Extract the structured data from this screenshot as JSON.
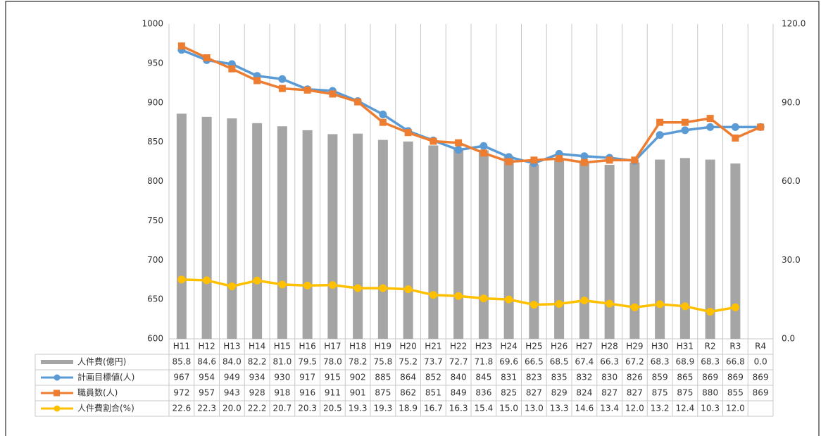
{
  "chart_data": {
    "type": "combo",
    "categories": [
      "H11",
      "H12",
      "H13",
      "H14",
      "H15",
      "H16",
      "H17",
      "H18",
      "H19",
      "H20",
      "H21",
      "H22",
      "H23",
      "H24",
      "H25",
      "H26",
      "H27",
      "H28",
      "H29",
      "H30",
      "H31",
      "R2",
      "R3",
      "R4"
    ],
    "ylim": [
      600,
      1000
    ],
    "yticks": [
      600,
      650,
      700,
      750,
      800,
      850,
      900,
      950,
      1000
    ],
    "y2lim": [
      0,
      120
    ],
    "y2ticks": [
      {
        "value": 0,
        "label": "0.0"
      },
      {
        "value": 30,
        "label": "30.0"
      },
      {
        "value": 60,
        "label": "60.0"
      },
      {
        "value": 90,
        "label": "90.0"
      },
      {
        "value": 120,
        "label": "120.0"
      }
    ],
    "grid": "x",
    "series": [
      {
        "name": "人件費(億円)",
        "type": "bar",
        "axis": "y2",
        "color": "#a5a5a5",
        "values": [
          85.8,
          84.6,
          84.0,
          82.2,
          81.0,
          79.5,
          78.0,
          78.2,
          75.8,
          75.2,
          73.7,
          72.7,
          71.8,
          69.6,
          66.5,
          68.5,
          67.4,
          66.3,
          67.2,
          68.3,
          68.9,
          68.3,
          66.8,
          0.0
        ],
        "value_labels": [
          "85.8",
          "84.6",
          "84.0",
          "82.2",
          "81.0",
          "79.5",
          "78.0",
          "78.2",
          "75.8",
          "75.2",
          "73.7",
          "72.7",
          "71.8",
          "69.6",
          "66.5",
          "68.5",
          "67.4",
          "66.3",
          "67.2",
          "68.3",
          "68.9",
          "68.3",
          "66.8",
          "0.0"
        ]
      },
      {
        "name": "計画目標値(人)",
        "type": "line",
        "marker": "circle",
        "color": "#5b9bd5",
        "values": [
          967,
          954,
          949,
          934,
          930,
          917,
          915,
          902,
          885,
          864,
          852,
          840,
          845,
          831,
          823,
          835,
          832,
          830,
          826,
          859,
          865,
          869,
          869,
          869
        ]
      },
      {
        "name": "職員数(人)",
        "type": "line",
        "marker": "square",
        "color": "#ed7d31",
        "values": [
          972,
          957,
          943,
          928,
          918,
          916,
          911,
          901,
          875,
          862,
          851,
          849,
          836,
          825,
          827,
          829,
          824,
          827,
          827,
          875,
          875,
          880,
          855,
          869
        ]
      },
      {
        "name": "人件費割合(%)",
        "type": "line",
        "marker": "circle",
        "axis": "y2",
        "color": "#ffc000",
        "values": [
          22.6,
          22.3,
          20.0,
          22.2,
          20.7,
          20.3,
          20.5,
          19.3,
          19.3,
          18.9,
          16.7,
          16.3,
          15.4,
          15.0,
          13.0,
          13.3,
          14.6,
          13.4,
          12.0,
          13.2,
          12.4,
          10.3,
          12.0,
          null
        ],
        "value_labels": [
          "22.6",
          "22.3",
          "20.0",
          "22.2",
          "20.7",
          "20.3",
          "20.5",
          "19.3",
          "19.3",
          "18.9",
          "16.7",
          "16.3",
          "15.4",
          "15.0",
          "13.0",
          "13.3",
          "14.6",
          "13.4",
          "12.0",
          "13.2",
          "12.4",
          "10.3",
          "12.0",
          null
        ]
      }
    ]
  }
}
